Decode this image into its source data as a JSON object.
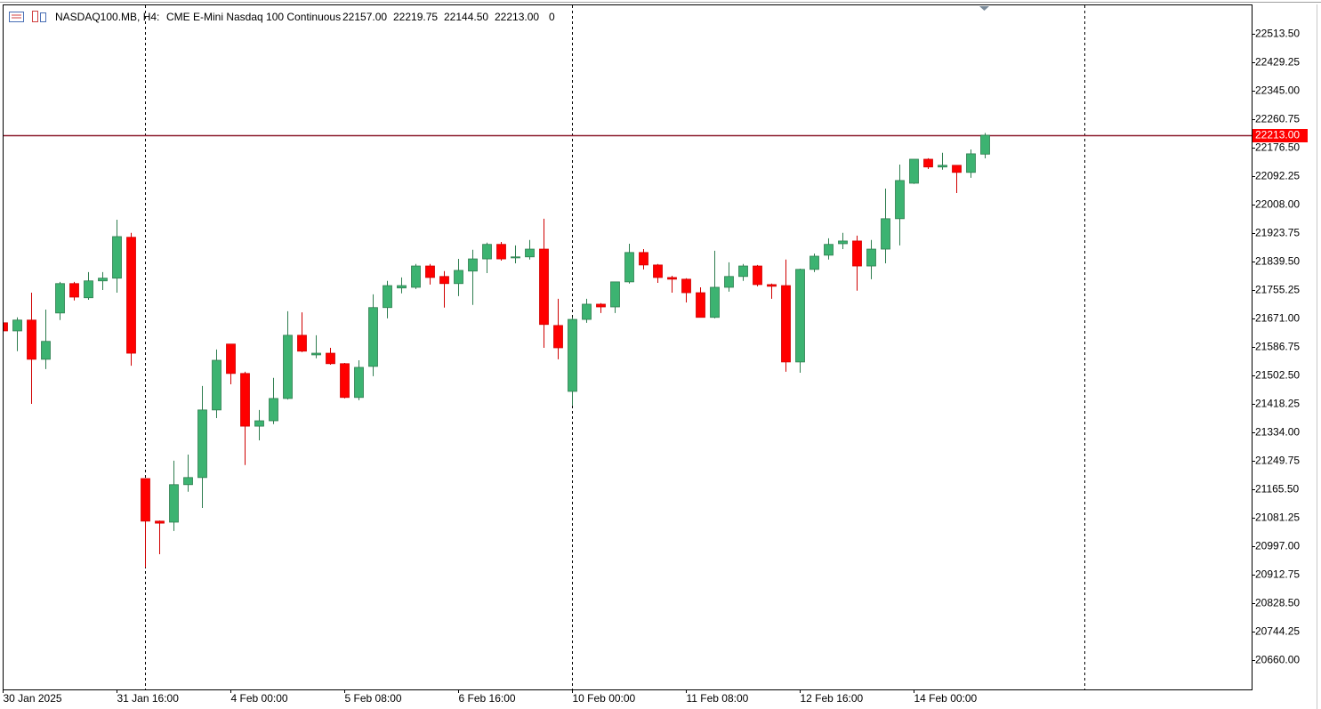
{
  "header": {
    "symbol": "NASDAQ100.MB, H4:",
    "description": "CME E-Mini Nasdaq 100 Continuous",
    "ohlc_labels": [
      "22157.00",
      "22219.75",
      "22144.50",
      "22213.00"
    ],
    "volume": "0"
  },
  "chart_data": {
    "type": "candlestick",
    "categories": [
      "30 Jan 2025",
      null,
      null,
      null,
      null,
      null,
      null,
      null,
      "31 Jan 16:00",
      null,
      null,
      null,
      null,
      null,
      null,
      null,
      "4 Feb 00:00",
      null,
      null,
      null,
      null,
      null,
      null,
      null,
      "5 Feb 08:00",
      null,
      null,
      null,
      null,
      null,
      null,
      null,
      "6 Feb 16:00",
      null,
      null,
      null,
      null,
      null,
      null,
      null,
      "10 Feb 00:00",
      null,
      null,
      null,
      null,
      null,
      null,
      null,
      "11 Feb 08:00",
      null,
      null,
      null,
      null,
      null,
      null,
      null,
      "12 Feb 16:00",
      null,
      null,
      null,
      null,
      null,
      null,
      null,
      "14 Feb 00:00",
      null,
      null,
      null,
      null,
      null
    ],
    "open": [
      21658,
      21634,
      21666,
      21550,
      21687,
      21774,
      21732,
      21782,
      21790,
      21911,
      21197,
      21071,
      21068,
      21179,
      21200,
      21400,
      21595,
      21508,
      21352,
      21368,
      21434,
      21621,
      21563,
      21568,
      21537,
      21437,
      21529,
      21703,
      21761,
      21763,
      21826,
      21795,
      21774,
      21811,
      21847,
      21890,
      21850,
      21853,
      21876,
      21650,
      21455,
      21668,
      21713,
      21705,
      21779,
      21866,
      21829,
      21792,
      21787,
      21747,
      21674,
      21763,
      21795,
      21826,
      21771,
      21768,
      21542,
      21816,
      21858,
      21892,
      21900,
      21826,
      21876,
      21966,
      22071,
      22142,
      22119,
      22124,
      22103,
      22157
    ],
    "high": [
      21666,
      21674,
      21747,
      21697,
      21779,
      21779,
      21808,
      21808,
      21963,
      21924,
      21197,
      21073,
      21250,
      21268,
      21471,
      21579,
      21595,
      21513,
      21400,
      21495,
      21692,
      21689,
      21621,
      21584,
      21539,
      21547,
      21742,
      21782,
      21792,
      21832,
      21832,
      21811,
      21847,
      21874,
      21895,
      21897,
      21887,
      21903,
      21966,
      21729,
      21674,
      21729,
      21716,
      21779,
      21892,
      21876,
      21832,
      21797,
      21790,
      21763,
      21871,
      21837,
      21832,
      21829,
      21774,
      21845,
      21818,
      21863,
      21908,
      21924,
      21916,
      21903,
      22055,
      22126,
      22142,
      22145,
      22161,
      22124,
      22171,
      22219.75
    ],
    "low": [
      21629,
      21574,
      21418,
      21521,
      21666,
      21724,
      21726,
      21755,
      21747,
      21531,
      20934,
      20973,
      21042,
      21158,
      21110,
      21376,
      21476,
      21237,
      21310,
      21358,
      21431,
      21571,
      21553,
      21534,
      21434,
      21429,
      21500,
      21671,
      21745,
      21758,
      21771,
      21703,
      21737,
      21711,
      21805,
      21842,
      21834,
      21845,
      21584,
      21550,
      21413,
      21658,
      21687,
      21687,
      21774,
      21816,
      21776,
      21747,
      21718,
      21674,
      21671,
      21750,
      21782,
      21766,
      21729,
      21513,
      21510,
      21808,
      21845,
      21876,
      21753,
      21787,
      21834,
      21887,
      22069,
      22113,
      22111,
      22042,
      22087,
      22144.5
    ],
    "close": [
      21634,
      21666,
      21550,
      21603,
      21774,
      21734,
      21782,
      21790,
      21913,
      21568,
      21071,
      21065,
      21179,
      21200,
      21400,
      21547,
      21508,
      21352,
      21368,
      21434,
      21621,
      21574,
      21568,
      21537,
      21437,
      21526,
      21703,
      21768,
      21768,
      21826,
      21792,
      21774,
      21813,
      21847,
      21890,
      21847,
      21853,
      21876,
      21653,
      21584,
      21668,
      21713,
      21705,
      21779,
      21866,
      21829,
      21792,
      21787,
      21747,
      21674,
      21763,
      21795,
      21826,
      21771,
      21766,
      21542,
      21816,
      21855,
      21890,
      21900,
      21826,
      21876,
      21966,
      22079,
      22142,
      22119,
      22124,
      22103,
      22158,
      22213
    ],
    "up_color": "#3cb371",
    "down_color": "#ff0000",
    "current_price": {
      "value": 22213,
      "label": "22213.00"
    },
    "current_price_color": "#8b1a2b",
    "ylim": [
      20573,
      22600
    ],
    "yticks": [
      {
        "value": 22513.5,
        "label": "22513.50"
      },
      {
        "value": 22429.25,
        "label": "22429.25"
      },
      {
        "value": 22345,
        "label": "22345.00"
      },
      {
        "value": 22260.75,
        "label": "22260.75"
      },
      {
        "value": 22176.5,
        "label": "22176.50"
      },
      {
        "value": 22092.25,
        "label": "22092.25"
      },
      {
        "value": 22008,
        "label": "22008.00"
      },
      {
        "value": 21923.75,
        "label": "21923.75"
      },
      {
        "value": 21839.5,
        "label": "21839.50"
      },
      {
        "value": 21755.25,
        "label": "21755.25"
      },
      {
        "value": 21671,
        "label": "21671.00"
      },
      {
        "value": 21586.75,
        "label": "21586.75"
      },
      {
        "value": 21502.5,
        "label": "21502.50"
      },
      {
        "value": 21418.25,
        "label": "21418.25"
      },
      {
        "value": 21334,
        "label": "21334.00"
      },
      {
        "value": 21249.75,
        "label": "21249.75"
      },
      {
        "value": 21165.5,
        "label": "21165.50"
      },
      {
        "value": 21081.25,
        "label": "21081.25"
      },
      {
        "value": 20997,
        "label": "20997.00"
      },
      {
        "value": 20912.75,
        "label": "20912.75"
      },
      {
        "value": 20828.5,
        "label": "20828.50"
      },
      {
        "value": 20744.25,
        "label": "20744.25"
      },
      {
        "value": 20660,
        "label": "20660.00"
      }
    ],
    "grid": false
  }
}
